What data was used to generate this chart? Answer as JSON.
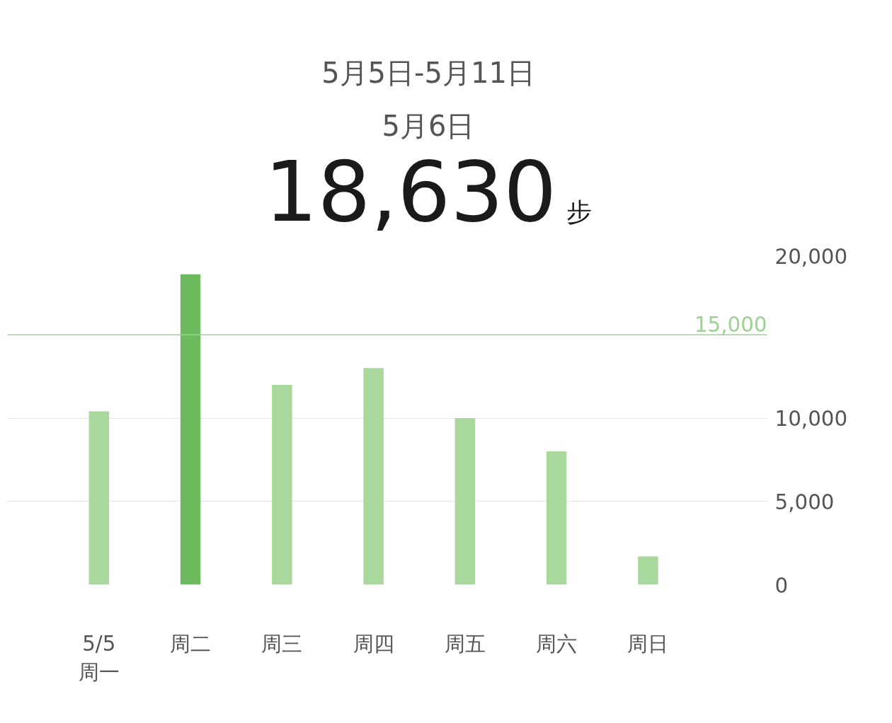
{
  "chart_data": {
    "type": "bar",
    "title": "5月5日-5月11日",
    "subtitle": "5月6日",
    "annotations": [
      "18,630",
      "步"
    ],
    "categories": [
      "5/5\n周一",
      "周二",
      "周三",
      "周四",
      "周五",
      "周六",
      "周日"
    ],
    "values": [
      10400,
      18630,
      12000,
      13000,
      10000,
      8000,
      1700
    ],
    "colors": [
      "#a8d89c",
      "#6dbb5e",
      "#a8d89c",
      "#a8d89c",
      "#a8d89c",
      "#a8d89c",
      "#a8d89c"
    ],
    "ylim": [
      0,
      20000
    ],
    "yticks": [
      {
        "value": 0,
        "label": "0"
      },
      {
        "value": 5000,
        "label": "5,000"
      },
      {
        "value": 10000,
        "label": "10,000"
      },
      {
        "value": 15000,
        "label": null
      },
      {
        "value": 20000,
        "label": "20,000"
      }
    ],
    "ref_lines": [
      {
        "axis": "y",
        "value": 15000,
        "label": "15,000",
        "color": "#9fd095"
      }
    ],
    "grid": "y"
  }
}
